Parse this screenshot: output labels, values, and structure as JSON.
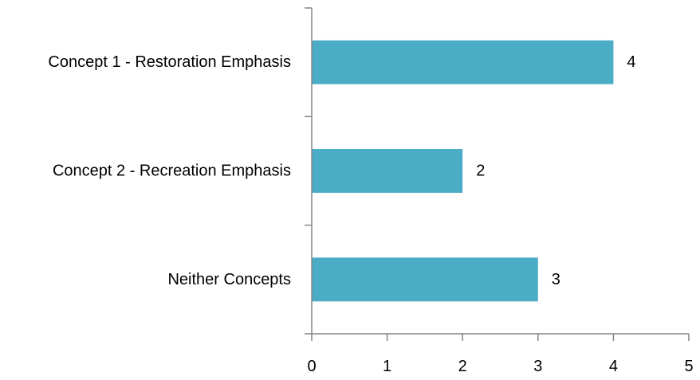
{
  "chart_data": {
    "type": "bar",
    "orientation": "horizontal",
    "categories": [
      "Concept 1 - Restoration  Emphasis",
      "Concept 2 - Recreation Emphasis",
      "Neither Concepts"
    ],
    "values": [
      4,
      2,
      3
    ],
    "data_labels": [
      "4",
      "2",
      "3"
    ],
    "xlim": [
      0,
      5
    ],
    "x_ticks": [
      0,
      1,
      2,
      3,
      4,
      5
    ],
    "x_tick_labels": [
      "0",
      "1",
      "2",
      "3",
      "4",
      "5"
    ],
    "title": "",
    "xlabel": "",
    "ylabel": "",
    "grid": false,
    "legend": "none",
    "colors": {
      "bar": "#4bacc6",
      "axis": "#868686",
      "text": "#000000"
    }
  }
}
